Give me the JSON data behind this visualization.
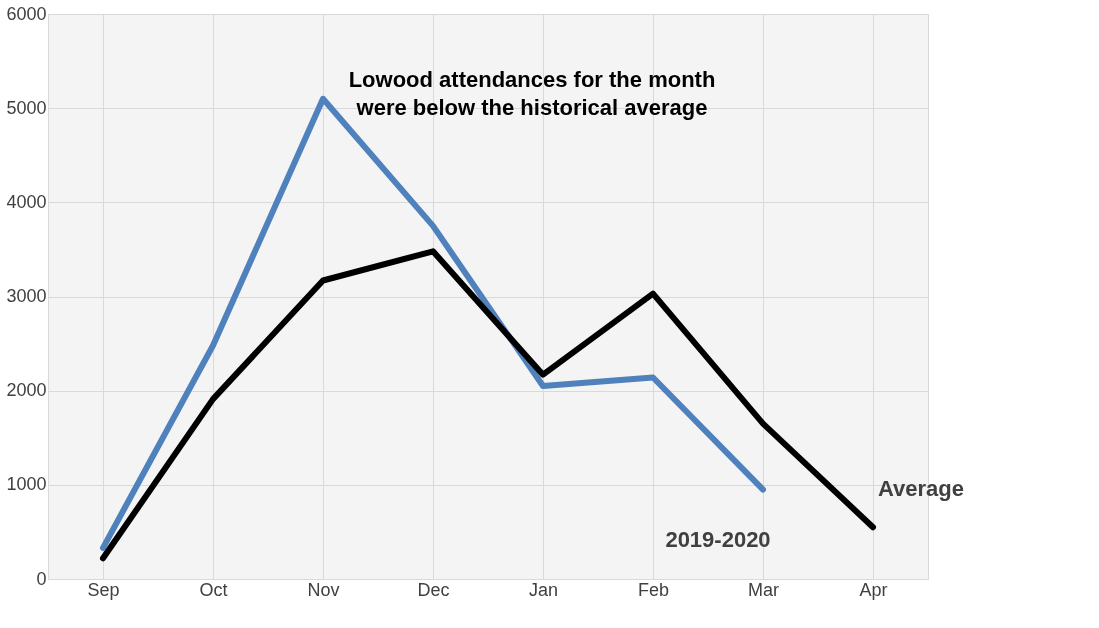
{
  "chart_data": {
    "type": "line",
    "categories": [
      "Sep",
      "Oct",
      "Nov",
      "Dec",
      "Jan",
      "Feb",
      "Mar",
      "Apr"
    ],
    "series": [
      {
        "name": "2019-2020",
        "color": "#4f81bd",
        "values": [
          330,
          2480,
          5100,
          3750,
          2050,
          2140,
          950,
          null
        ]
      },
      {
        "name": "Average",
        "color": "#000000",
        "values": [
          220,
          1910,
          3170,
          3480,
          2170,
          3030,
          1650,
          550
        ]
      }
    ],
    "annotations": [
      "Lowood attendances for the month were below the historical average"
    ],
    "ylim": [
      0,
      6000
    ],
    "yticks": [
      0,
      1000,
      2000,
      3000,
      4000,
      5000,
      6000
    ],
    "grid": true,
    "marker": "none",
    "line_style": "solid"
  }
}
